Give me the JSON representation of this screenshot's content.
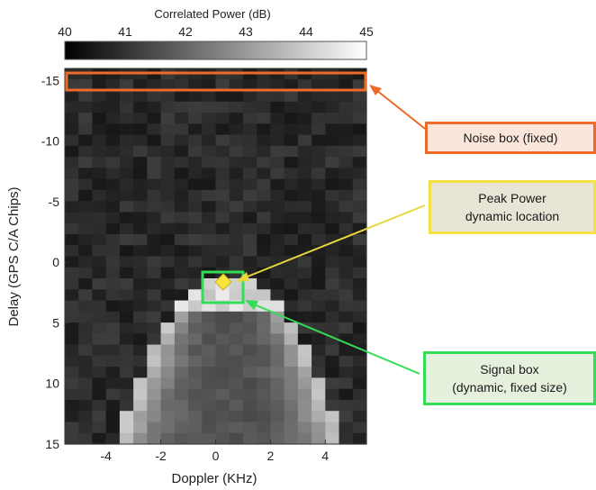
{
  "chart_data": {
    "type": "heatmap",
    "title": "",
    "xlabel": "Doppler (KHz)",
    "ylabel": "Delay (GPS C/A Chips)",
    "xlim": [
      -5.5,
      5.5
    ],
    "ylim": [
      -16,
      15
    ],
    "y_inverted": true,
    "x_ticks": [
      "-4",
      "-2",
      "0",
      "2",
      "4"
    ],
    "y_ticks": [
      "-15",
      "-10",
      "-5",
      "0",
      "5",
      "10",
      "15"
    ],
    "colorbar": {
      "title": "Correlated Power (dB)",
      "range": [
        40,
        45
      ],
      "ticks": [
        "40",
        "41",
        "42",
        "43",
        "44",
        "45"
      ],
      "colormap": "gray"
    },
    "description_of_pattern": "noise floor ~40-41 dB with a bright inverted-parabola correlation arc peaking near Doppler 0.5 KHz, delay 2 chips",
    "peak": {
      "doppler_khz": 0.5,
      "delay_chips": 2,
      "power_db": 45
    },
    "noise_box": {
      "doppler_khz": [
        -5.5,
        5.5
      ],
      "delay_chips": [
        -15.8,
        -14.2
      ]
    },
    "signal_box": {
      "doppler_khz": [
        -0.6,
        1.2
      ],
      "delay_chips": [
        0.6,
        3.6
      ]
    }
  },
  "annotations": {
    "noise": {
      "text": "Noise box (fixed)",
      "color": "#ee6a2a",
      "fill": "#fbe6dc"
    },
    "peak": {
      "line1": "Peak Power",
      "line2": "dynamic location",
      "color": "#f4e245",
      "fill": "#e8e5d6"
    },
    "signal": {
      "line1": "Signal box",
      "line2": "(dynamic, fixed size)",
      "color": "#33dd55",
      "fill": "#e5f0dd"
    }
  }
}
